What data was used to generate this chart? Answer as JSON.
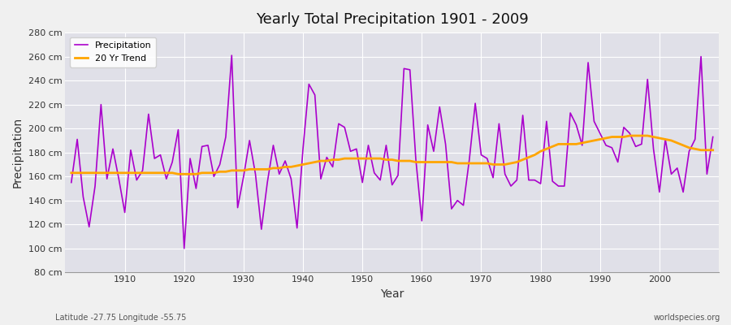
{
  "title": "Yearly Total Precipitation 1901 - 2009",
  "xlabel": "Year",
  "ylabel": "Precipitation",
  "lat_lon_label": "Latitude -27.75 Longitude -55.75",
  "watermark": "worldspecies.org",
  "precipitation_color": "#AA00CC",
  "trend_color": "#FFA500",
  "background_color": "#F0F0F0",
  "plot_bg_color": "#E0E0E8",
  "grid_color": "#FFFFFF",
  "ylim": [
    80,
    280
  ],
  "ytick_step": 20,
  "years": [
    1901,
    1902,
    1903,
    1904,
    1905,
    1906,
    1907,
    1908,
    1909,
    1910,
    1911,
    1912,
    1913,
    1914,
    1915,
    1916,
    1917,
    1918,
    1919,
    1920,
    1921,
    1922,
    1923,
    1924,
    1925,
    1926,
    1927,
    1928,
    1929,
    1930,
    1931,
    1932,
    1933,
    1934,
    1935,
    1936,
    1937,
    1938,
    1939,
    1940,
    1941,
    1942,
    1943,
    1944,
    1945,
    1946,
    1947,
    1948,
    1949,
    1950,
    1951,
    1952,
    1953,
    1954,
    1955,
    1956,
    1957,
    1958,
    1959,
    1960,
    1961,
    1962,
    1963,
    1964,
    1965,
    1966,
    1967,
    1968,
    1969,
    1970,
    1971,
    1972,
    1973,
    1974,
    1975,
    1976,
    1977,
    1978,
    1979,
    1980,
    1981,
    1982,
    1983,
    1984,
    1985,
    1986,
    1987,
    1988,
    1989,
    1990,
    1991,
    1992,
    1993,
    1994,
    1995,
    1996,
    1997,
    1998,
    1999,
    2000,
    2001,
    2002,
    2003,
    2004,
    2005,
    2006,
    2007,
    2008,
    2009
  ],
  "precipitation": [
    155,
    191,
    143,
    118,
    152,
    220,
    158,
    183,
    158,
    130,
    182,
    157,
    165,
    212,
    175,
    178,
    158,
    172,
    199,
    100,
    175,
    150,
    185,
    186,
    160,
    170,
    193,
    261,
    134,
    160,
    190,
    162,
    116,
    155,
    186,
    162,
    173,
    158,
    117,
    183,
    237,
    228,
    158,
    176,
    168,
    204,
    201,
    181,
    183,
    155,
    186,
    163,
    157,
    186,
    153,
    161,
    250,
    249,
    174,
    123,
    203,
    181,
    218,
    187,
    133,
    140,
    136,
    174,
    221,
    178,
    175,
    159,
    204,
    162,
    152,
    157,
    211,
    157,
    157,
    154,
    206,
    156,
    152,
    152,
    213,
    203,
    186,
    255,
    206,
    196,
    186,
    184,
    172,
    201,
    196,
    185,
    187,
    241,
    183,
    147,
    191,
    162,
    167,
    147,
    181,
    191,
    260,
    162,
    193
  ],
  "trend_values": [
    163,
    163,
    163,
    163,
    163,
    163,
    163,
    163,
    163,
    163,
    163,
    163,
    163,
    163,
    163,
    163,
    163,
    163,
    162,
    162,
    162,
    162,
    163,
    163,
    163,
    164,
    164,
    165,
    165,
    165,
    166,
    166,
    166,
    166,
    167,
    167,
    168,
    168,
    169,
    170,
    171,
    172,
    173,
    173,
    174,
    174,
    175,
    175,
    175,
    175,
    175,
    175,
    175,
    174,
    174,
    173,
    173,
    173,
    172,
    172,
    172,
    172,
    172,
    172,
    172,
    171,
    171,
    171,
    171,
    171,
    171,
    170,
    170,
    170,
    171,
    172,
    174,
    176,
    178,
    181,
    183,
    185,
    187,
    187,
    187,
    187,
    188,
    189,
    190,
    191,
    192,
    193,
    193,
    193,
    194,
    194,
    194,
    194,
    193,
    192,
    191,
    190,
    188,
    186,
    184,
    183,
    182,
    182,
    182
  ]
}
